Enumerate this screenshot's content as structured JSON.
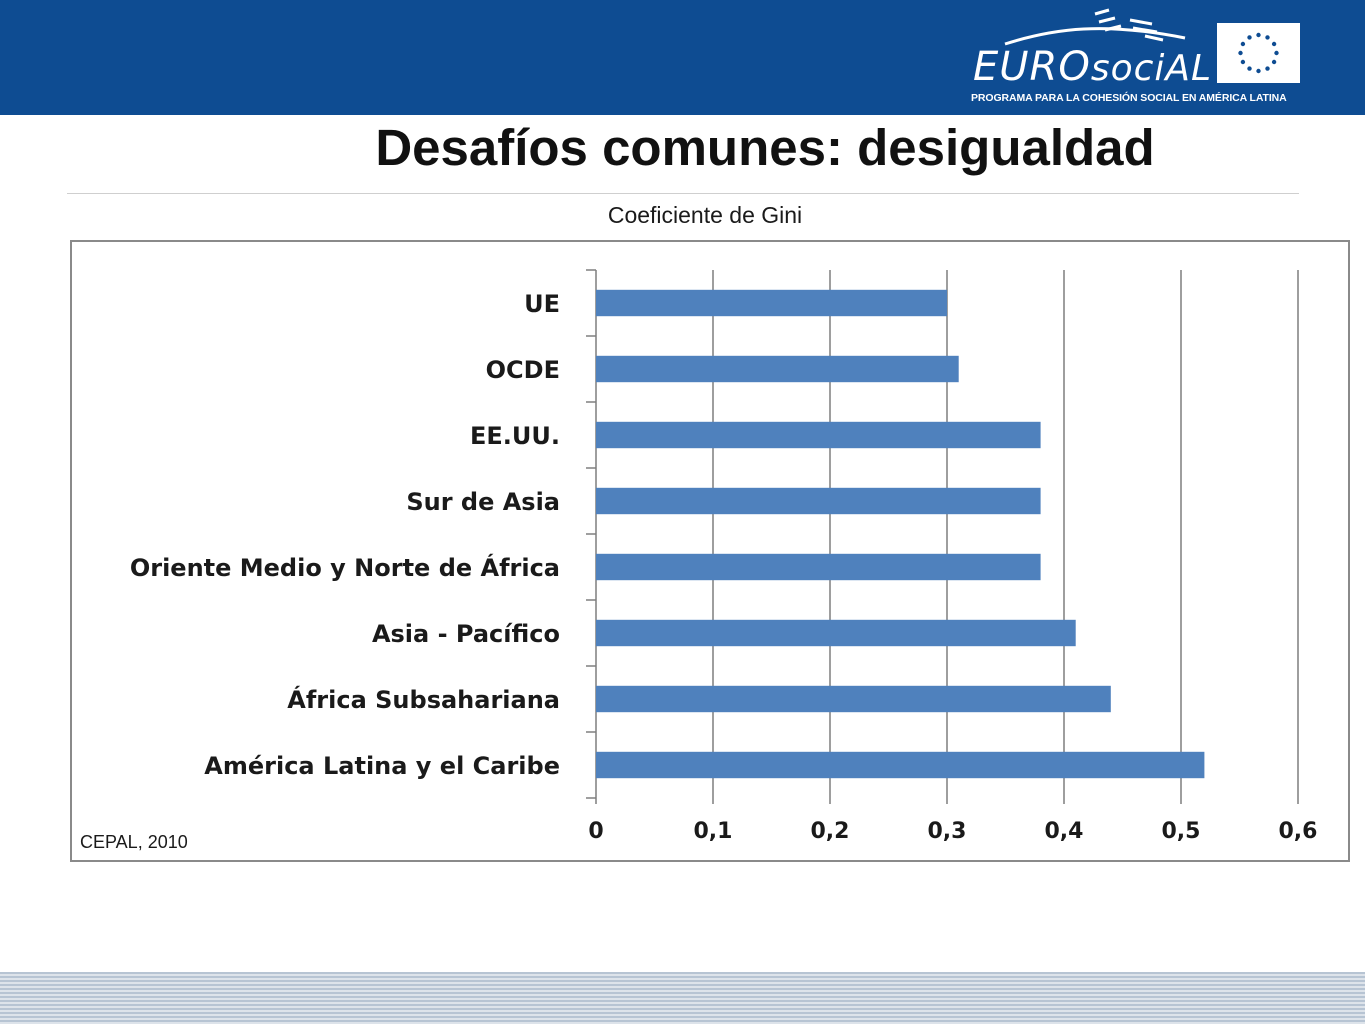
{
  "header": {
    "logo_text_upper": "EURO",
    "logo_text_lower": "sociAL",
    "logo_tagline": "PROGRAMA PARA LA COHESIÓN SOCIAL EN AMÉRICA LATINA"
  },
  "page": {
    "title": "Desafíos comunes: desigualdad",
    "chart_caption": "Coeficiente de Gini",
    "source_note": "CEPAL, 2010"
  },
  "colors": {
    "header_band": "#0e4c92",
    "bar": "#4f81bd",
    "gridline": "#7f7f7f"
  },
  "chart_data": {
    "type": "bar",
    "orientation": "horizontal",
    "title": "Coeficiente de Gini",
    "categories": [
      "UE",
      "OCDE",
      "EE.UU.",
      "Sur de Asia",
      "Oriente Medio y Norte de África",
      "Asia - Pacífico",
      "África Subsahariana",
      "América Latina y el Caribe"
    ],
    "values": [
      0.3,
      0.31,
      0.38,
      0.38,
      0.38,
      0.41,
      0.44,
      0.52
    ],
    "xlim": [
      0,
      0.6
    ],
    "xticks": [
      "0",
      "0,1",
      "0,2",
      "0,3",
      "0,4",
      "0,5",
      "0,6"
    ],
    "xlabel": "",
    "ylabel": "",
    "grid": "vertical",
    "legend": "none"
  }
}
